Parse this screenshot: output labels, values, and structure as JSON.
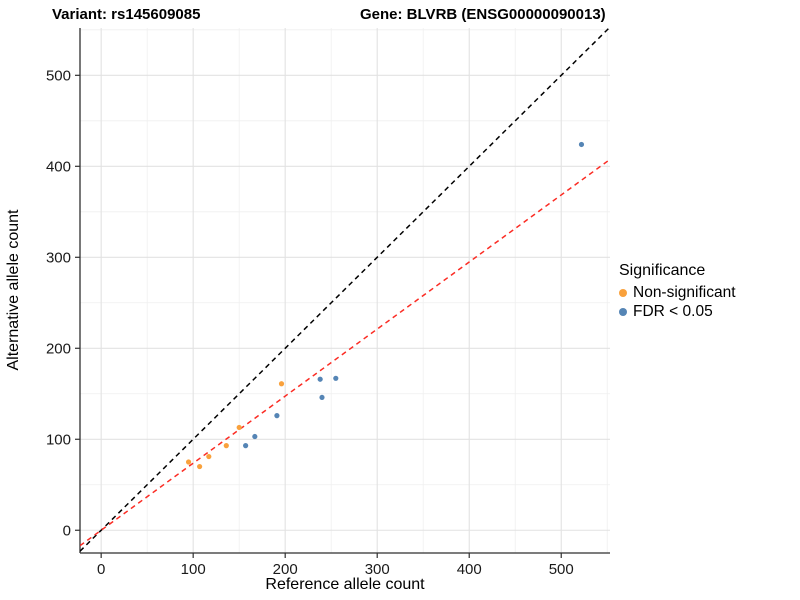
{
  "page": {
    "background": "#FFFFFF"
  },
  "header": {
    "title_left": "Variant: rs145609085",
    "title_right": "Gene: BLVRB (ENSG00000090013)"
  },
  "chart_data": {
    "type": "scatter",
    "xlabel": "Reference allele count",
    "ylabel": "Alternative allele count",
    "xlim": [
      -23,
      553
    ],
    "ylim": [
      -25,
      552
    ],
    "x_ticks": [
      0,
      100,
      200,
      300,
      400,
      500
    ],
    "y_ticks": [
      0,
      100,
      200,
      300,
      400,
      500
    ],
    "minor_grid_x": [
      50,
      150,
      250,
      350,
      450,
      550
    ],
    "minor_grid_y": [
      50,
      150,
      250,
      350,
      450,
      550
    ],
    "grid": "on",
    "legend": {
      "title": "Significance",
      "position": "right"
    },
    "series": [
      {
        "name": "Non-significant",
        "color": "#F9A13C",
        "points": [
          [
            95,
            75
          ],
          [
            107,
            70
          ],
          [
            117,
            81
          ],
          [
            136,
            93
          ],
          [
            150,
            113
          ],
          [
            196,
            161
          ]
        ]
      },
      {
        "name": "FDR < 0.05",
        "color": "#5585B5",
        "points": [
          [
            157,
            93
          ],
          [
            167,
            103
          ],
          [
            191,
            126
          ],
          [
            238,
            166
          ],
          [
            240,
            146
          ],
          [
            255,
            167
          ],
          [
            522,
            424
          ]
        ]
      }
    ],
    "lines": [
      {
        "name": "identity-line",
        "color": "#000000",
        "dash": true,
        "slope": 1,
        "intercept": 0
      },
      {
        "name": "fit-line",
        "color": "#FB2C24",
        "dash": true,
        "slope": 0.737,
        "intercept": 0
      }
    ],
    "colors": {
      "grid_major": "#E2E2E2",
      "grid_minor": "#EFEFEF",
      "axis_line": "#2F2F2F",
      "tick_text": "#1A1A1A"
    }
  }
}
